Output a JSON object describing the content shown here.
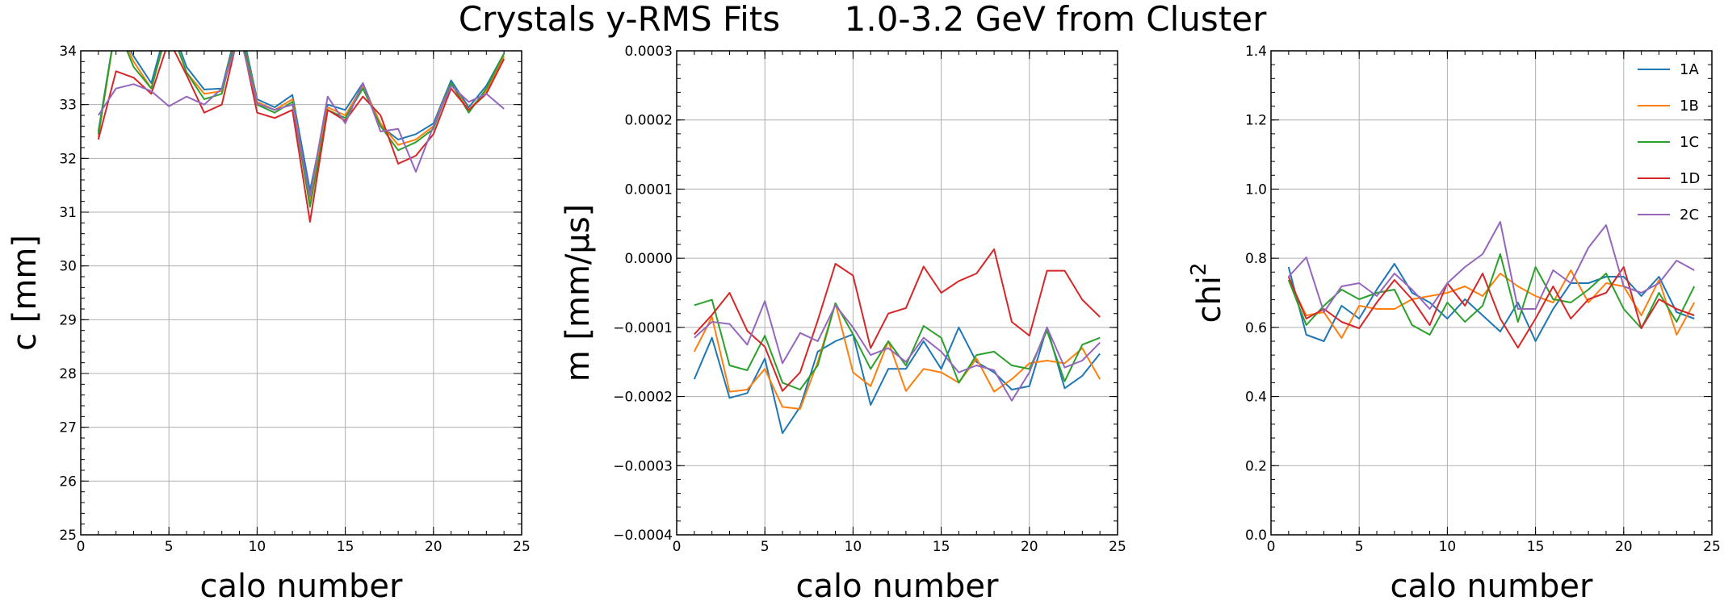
{
  "title_left": "Crystals y-RMS Fits",
  "title_right": "1.0-3.2 GeV from Cluster",
  "colors": {
    "1A": "#1f77b4",
    "1B": "#ff7f0e",
    "1C": "#2ca02c",
    "1D": "#d62728",
    "2C": "#9467bd"
  },
  "chart_data": [
    {
      "type": "line",
      "xlabel": "calo number",
      "ylabel": "c    [mm]",
      "xlim": [
        0,
        25
      ],
      "ylim": [
        25,
        34
      ],
      "xticks": [
        "0",
        "5",
        "10",
        "15",
        "20",
        "25"
      ],
      "yticks": [
        "25",
        "26",
        "27",
        "28",
        "29",
        "30",
        "31",
        "32",
        "33",
        "34"
      ],
      "x": [
        1,
        2,
        3,
        4,
        5,
        6,
        7,
        8,
        9,
        10,
        11,
        12,
        13,
        14,
        15,
        16,
        17,
        18,
        19,
        20,
        21,
        22,
        23,
        24
      ],
      "series": [
        {
          "name": "1A",
          "values": [
            32.5,
            34.5,
            33.9,
            33.4,
            34.6,
            33.7,
            33.28,
            33.3,
            34.6,
            33.1,
            32.95,
            33.18,
            31.4,
            33.0,
            32.9,
            33.4,
            32.6,
            32.35,
            32.45,
            32.65,
            33.45,
            32.95,
            33.35,
            33.95
          ]
        },
        {
          "name": "1B",
          "values": [
            32.4,
            34.5,
            33.8,
            33.3,
            34.5,
            33.6,
            33.2,
            33.25,
            34.5,
            33.05,
            32.9,
            33.1,
            31.2,
            32.95,
            32.8,
            33.35,
            32.65,
            32.25,
            32.35,
            32.6,
            33.4,
            32.9,
            33.25,
            33.9
          ]
        },
        {
          "name": "1C",
          "values": [
            32.45,
            34.5,
            33.7,
            33.3,
            34.5,
            33.6,
            33.1,
            33.2,
            34.5,
            33.0,
            32.85,
            33.05,
            31.1,
            32.9,
            32.75,
            33.3,
            32.6,
            32.15,
            32.3,
            32.55,
            33.4,
            32.85,
            33.3,
            33.95
          ]
        },
        {
          "name": "1D",
          "values": [
            32.35,
            33.62,
            33.5,
            33.2,
            34.2,
            33.55,
            32.85,
            33.0,
            34.4,
            32.85,
            32.75,
            32.9,
            30.82,
            32.9,
            32.7,
            33.15,
            32.8,
            31.9,
            32.05,
            32.45,
            33.3,
            32.9,
            33.2,
            33.85
          ]
        },
        {
          "name": "2C",
          "values": [
            32.8,
            33.3,
            33.38,
            33.25,
            32.97,
            33.15,
            33.0,
            33.3,
            34.3,
            33.02,
            32.9,
            33.0,
            31.3,
            33.15,
            32.65,
            33.4,
            32.5,
            32.55,
            31.75,
            32.6,
            33.35,
            33.05,
            33.2,
            32.92
          ]
        }
      ]
    },
    {
      "type": "line",
      "xlabel": "calo number",
      "ylabel": "m    [mm/µs]",
      "xlim": [
        0,
        25
      ],
      "ylim": [
        -0.0004,
        0.0003
      ],
      "xticks": [
        "0",
        "5",
        "10",
        "15",
        "20",
        "25"
      ],
      "yticks": [
        "−0.0004",
        "−0.0003",
        "−0.0002",
        "−0.0001",
        "0.0000",
        "0.0001",
        "0.0002",
        "0.0003"
      ],
      "x": [
        1,
        2,
        3,
        4,
        5,
        6,
        7,
        8,
        9,
        10,
        11,
        12,
        13,
        14,
        15,
        16,
        17,
        18,
        19,
        20,
        21,
        22,
        23,
        24
      ],
      "series": [
        {
          "name": "1A",
          "values": [
            -0.000175,
            -0.000115,
            -0.000202,
            -0.000195,
            -0.000145,
            -0.000253,
            -0.000215,
            -0.000135,
            -0.00012,
            -0.00011,
            -0.000212,
            -0.00016,
            -0.00016,
            -0.00012,
            -0.00016,
            -0.0001,
            -0.00015,
            -0.000165,
            -0.00019,
            -0.000185,
            -0.0001,
            -0.000188,
            -0.00017,
            -0.000138
          ]
        },
        {
          "name": "1B",
          "values": [
            -0.000135,
            -8.5e-05,
            -0.000193,
            -0.00019,
            -0.00016,
            -0.000215,
            -0.000218,
            -0.00015,
            -6.5e-05,
            -0.000165,
            -0.000185,
            -0.00012,
            -0.000192,
            -0.00016,
            -0.000165,
            -0.00018,
            -0.000145,
            -0.000193,
            -0.000175,
            -0.000152,
            -0.000148,
            -0.000152,
            -0.00013,
            -0.000175
          ]
        },
        {
          "name": "1C",
          "values": [
            -6.8e-05,
            -6e-05,
            -0.000155,
            -0.000162,
            -0.000112,
            -0.00018,
            -0.00019,
            -0.000155,
            -6.5e-05,
            -0.00011,
            -0.00016,
            -0.00012,
            -0.000155,
            -9.8e-05,
            -0.000115,
            -0.00018,
            -0.00014,
            -0.000135,
            -0.000155,
            -0.00016,
            -0.000105,
            -0.000178,
            -0.000125,
            -0.000115
          ]
        },
        {
          "name": "1D",
          "values": [
            -0.00011,
            -8.2e-05,
            -5e-05,
            -0.000105,
            -0.000128,
            -0.000192,
            -0.000165,
            -9e-05,
            -8e-06,
            -2.5e-05,
            -0.00013,
            -8e-05,
            -7.2e-05,
            -1.2e-05,
            -5e-05,
            -3.3e-05,
            -2.2e-05,
            1.3e-05,
            -9.2e-05,
            -0.000112,
            -1.8e-05,
            -1.8e-05,
            -6e-05,
            -8.5e-05
          ]
        },
        {
          "name": "2C",
          "values": [
            -0.000115,
            -9.2e-05,
            -9.5e-05,
            -0.000125,
            -6.2e-05,
            -0.000152,
            -0.000108,
            -0.00012,
            -6.8e-05,
            -0.0001,
            -0.00014,
            -0.00013,
            -0.00015,
            -0.000115,
            -0.000135,
            -0.000165,
            -0.000155,
            -0.000162,
            -0.000206,
            -0.000165,
            -0.0001,
            -0.000158,
            -0.000148,
            -0.000122
          ]
        }
      ]
    },
    {
      "type": "line",
      "xlabel": "calo number",
      "ylabel": "chi",
      "ylabel_sup": "2",
      "xlim": [
        0,
        25
      ],
      "ylim": [
        0,
        1.5
      ],
      "xticks": [
        "0",
        "5",
        "10",
        "15",
        "20",
        "25"
      ],
      "yticks": [
        "0.0",
        "0.2",
        "0.4",
        "0.6",
        "0.8",
        "1.0",
        "1.2",
        "1.4"
      ],
      "legend_position": "top-right",
      "x": [
        1,
        2,
        3,
        4,
        5,
        6,
        7,
        8,
        9,
        10,
        11,
        12,
        13,
        14,
        15,
        16,
        17,
        18,
        19,
        20,
        21,
        22,
        23,
        24
      ],
      "series": [
        {
          "name": "1A",
          "values": [
            0.83,
            0.62,
            0.6,
            0.71,
            0.67,
            0.76,
            0.84,
            0.75,
            0.72,
            0.67,
            0.73,
            0.68,
            0.63,
            0.72,
            0.6,
            0.7,
            0.78,
            0.78,
            0.8,
            0.8,
            0.74,
            0.8,
            0.69,
            0.67
          ]
        },
        {
          "name": "1B",
          "values": [
            0.79,
            0.68,
            0.69,
            0.61,
            0.71,
            0.7,
            0.7,
            0.73,
            0.74,
            0.75,
            0.77,
            0.74,
            0.81,
            0.77,
            0.74,
            0.72,
            0.82,
            0.72,
            0.78,
            0.77,
            0.68,
            0.79,
            0.62,
            0.72
          ]
        },
        {
          "name": "1C",
          "values": [
            0.79,
            0.65,
            0.71,
            0.76,
            0.73,
            0.75,
            0.76,
            0.65,
            0.62,
            0.72,
            0.66,
            0.71,
            0.87,
            0.66,
            0.83,
            0.73,
            0.72,
            0.76,
            0.81,
            0.7,
            0.64,
            0.75,
            0.66,
            0.77
          ]
        },
        {
          "name": "1D",
          "values": [
            0.8,
            0.67,
            0.7,
            0.66,
            0.64,
            0.72,
            0.79,
            0.73,
            0.65,
            0.78,
            0.71,
            0.81,
            0.67,
            0.58,
            0.67,
            0.77,
            0.67,
            0.73,
            0.75,
            0.83,
            0.64,
            0.73,
            0.7,
            0.68
          ]
        },
        {
          "name": "2C",
          "values": [
            0.8,
            0.86,
            0.69,
            0.77,
            0.78,
            0.74,
            0.81,
            0.76,
            0.7,
            0.78,
            0.83,
            0.87,
            0.97,
            0.7,
            0.7,
            0.82,
            0.78,
            0.89,
            0.96,
            0.77,
            0.75,
            0.78,
            0.85,
            0.82
          ]
        }
      ]
    }
  ]
}
